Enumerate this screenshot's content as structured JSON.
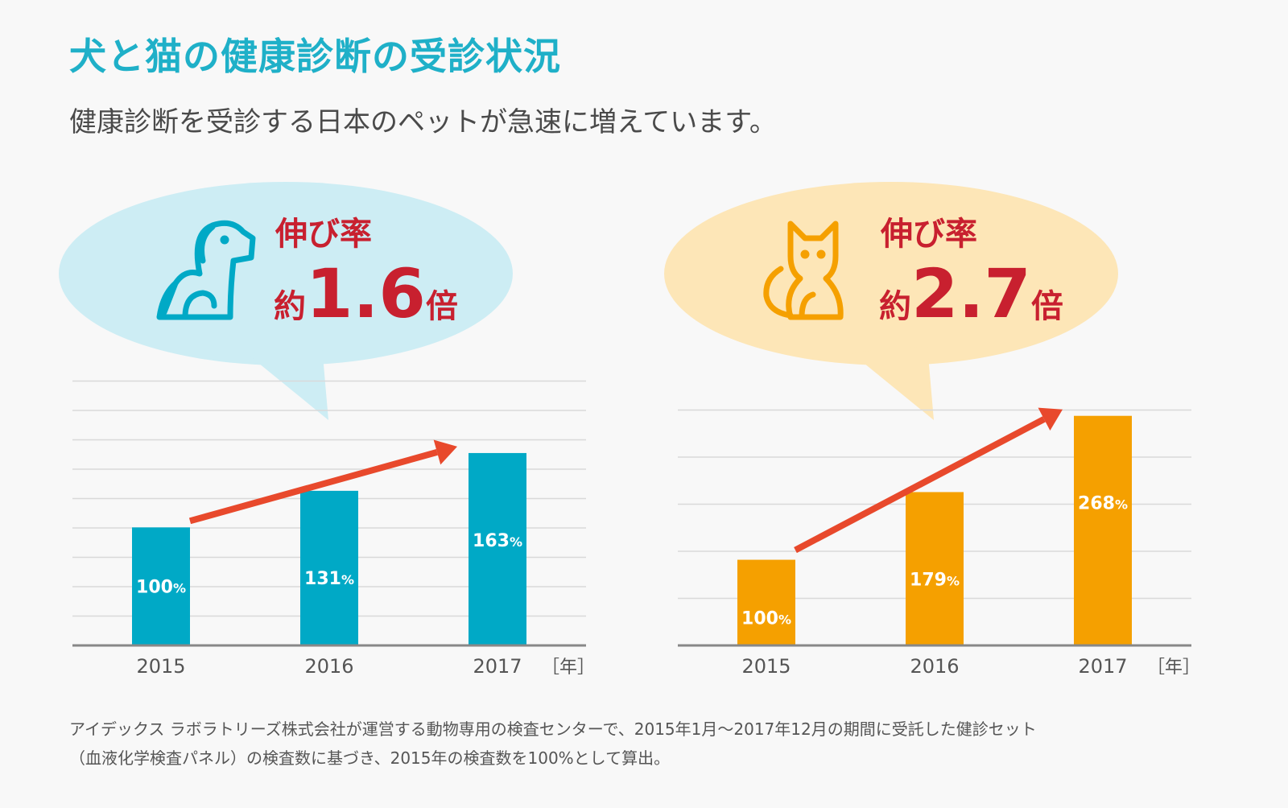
{
  "title": "犬と猫の健康診断の受診状況",
  "subtitle": "健康診断を受診する日本のペットが急速に増えています。",
  "footnote": [
    "アイデックス ラボラトリーズ株式会社が運営する動物専用の検査センターで、2015年1月〜2017年12月の期間に受託した健診セット",
    "（血液化学検査パネル）の検査数に基づき、2015年の検査数を100%として算出。"
  ],
  "colors": {
    "title": "#1fb0c8",
    "dog_bar": "#00a9c6",
    "dog_bubble": "#cdedf4",
    "cat_bar": "#f5a000",
    "cat_bubble": "#fde6b7",
    "headline_red": "#c8202f",
    "arrow": "#e8492c",
    "grid": "#d9d9d9",
    "axis": "#888888"
  },
  "chart_data": [
    {
      "type": "bar",
      "animal_icon": "dog-icon",
      "bubble_label": "伸び率",
      "bubble_prefix": "約",
      "bubble_value": "1.6",
      "bubble_suffix": "倍",
      "categories": [
        "2015",
        "2016",
        "2017"
      ],
      "values": [
        100,
        131,
        163
      ],
      "value_labels": [
        "100",
        "131",
        "163"
      ],
      "value_unit": "%",
      "x_unit_label": "［年］",
      "ylim": [
        0,
        225
      ],
      "grid": true
    },
    {
      "type": "bar",
      "animal_icon": "cat-icon",
      "bubble_label": "伸び率",
      "bubble_prefix": "約",
      "bubble_value": "2.7",
      "bubble_suffix": "倍",
      "categories": [
        "2015",
        "2016",
        "2017"
      ],
      "values": [
        100,
        179,
        268
      ],
      "value_labels": [
        "100",
        "179",
        "268"
      ],
      "value_unit": "%",
      "x_unit_label": "［年］",
      "ylim": [
        0,
        310
      ],
      "grid": true
    }
  ]
}
